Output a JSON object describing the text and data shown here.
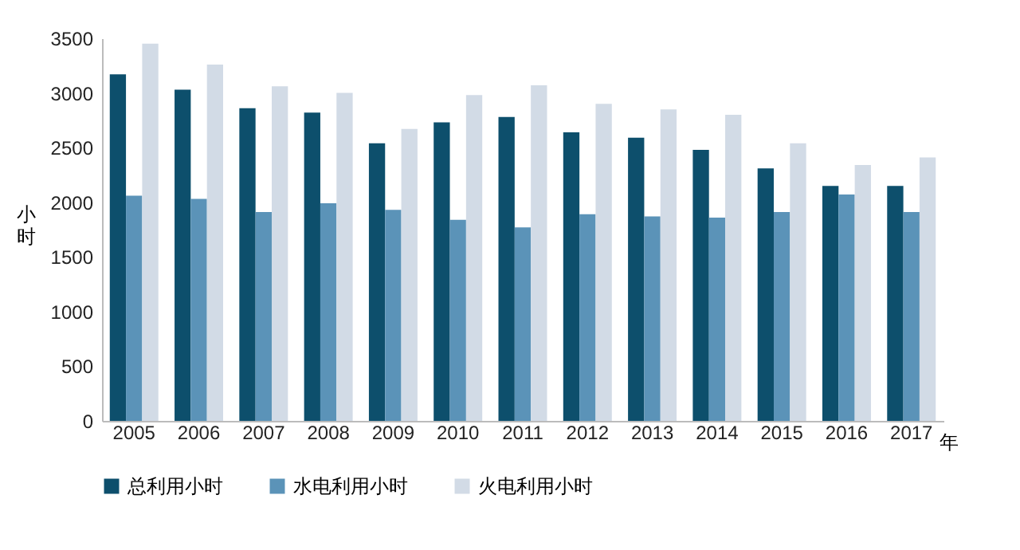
{
  "chart_data": {
    "type": "bar",
    "xlabel": "年",
    "ylabel": "小时",
    "categories": [
      "2005",
      "2006",
      "2007",
      "2008",
      "2009",
      "2010",
      "2011",
      "2012",
      "2013",
      "2014",
      "2015",
      "2016",
      "2017"
    ],
    "series": [
      {
        "name": "总利用小时",
        "color": "#0d4f6c",
        "values": [
          3170,
          3030,
          2860,
          2820,
          2540,
          2730,
          2780,
          2640,
          2590,
          2480,
          2310,
          2150,
          2150
        ]
      },
      {
        "name": "水电利用小时",
        "color": "#5b93b8",
        "values": [
          2060,
          2030,
          1910,
          1990,
          1930,
          1840,
          1770,
          1890,
          1870,
          1860,
          1910,
          2070,
          1910
        ]
      },
      {
        "name": "火电利用小时",
        "color": "#d2dbe6",
        "values": [
          3450,
          3260,
          3060,
          3000,
          2670,
          2980,
          3070,
          2900,
          2850,
          2800,
          2540,
          2340,
          2410
        ]
      }
    ],
    "ylim": [
      0,
      3500
    ],
    "yticks": [
      0,
      500,
      1000,
      1500,
      2000,
      2500,
      3000,
      3500
    ],
    "grid": false,
    "legend": "bottom"
  }
}
